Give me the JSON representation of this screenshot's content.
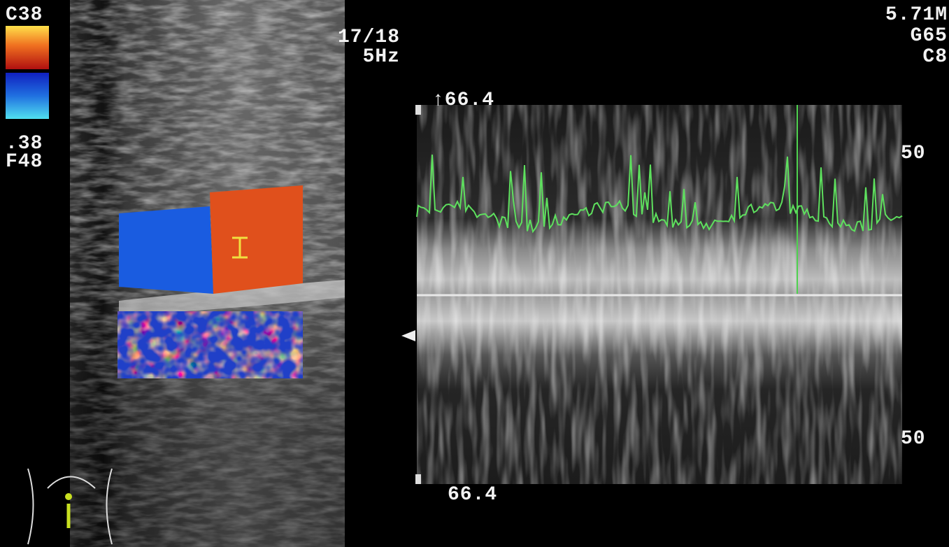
{
  "color_scale": {
    "top_label": "C38",
    "bottom_labels": [
      ".38",
      "F48"
    ]
  },
  "frame_info": {
    "frame": "17/18",
    "rate": "5Hz"
  },
  "settings": [
    "5.71M",
    "G65",
    "C8"
  ],
  "spectral": {
    "top_scale": "↑66.4",
    "bottom_scale": "66.4",
    "axis_labels": [
      "50",
      "50"
    ]
  }
}
